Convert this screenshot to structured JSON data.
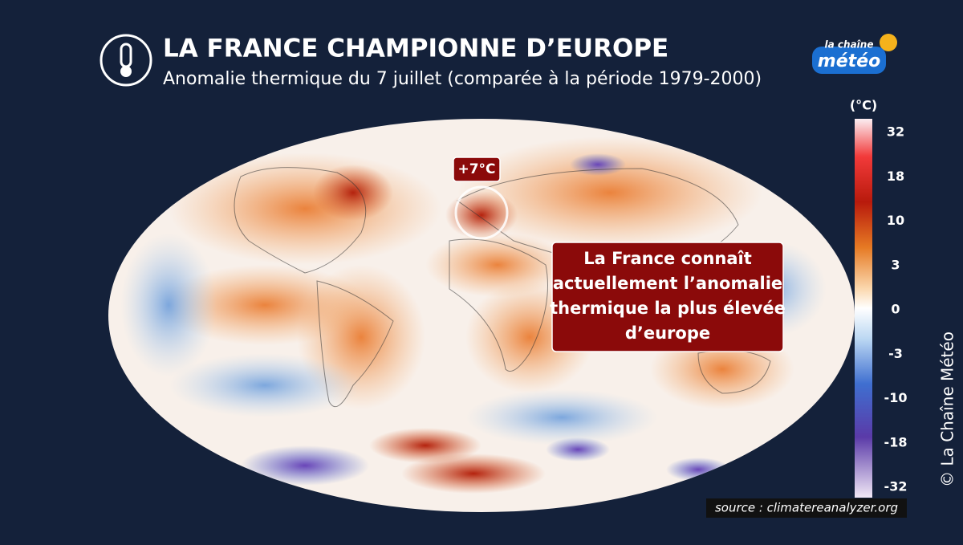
{
  "header": {
    "title": "LA FRANCE CHAMPIONNE D’EUROPE",
    "subtitle": "Anomalie thermique du 7 juillet (comparée à la période 1979-2000)"
  },
  "logo": {
    "top": "la chaîne",
    "bottom": "météo"
  },
  "map": {
    "marker_label": "+7°C",
    "callout": [
      "La France connaît",
      "actuellement l’anomalie",
      "thermique la plus élevée",
      "d’europe"
    ]
  },
  "colorbar": {
    "unit": "(°C)",
    "ticks": [
      32,
      18,
      10,
      3,
      0,
      -3,
      -10,
      -18,
      -32
    ]
  },
  "source": "source : climatereanalyzer.org",
  "copyright": "©  La Chaîne Météo"
}
